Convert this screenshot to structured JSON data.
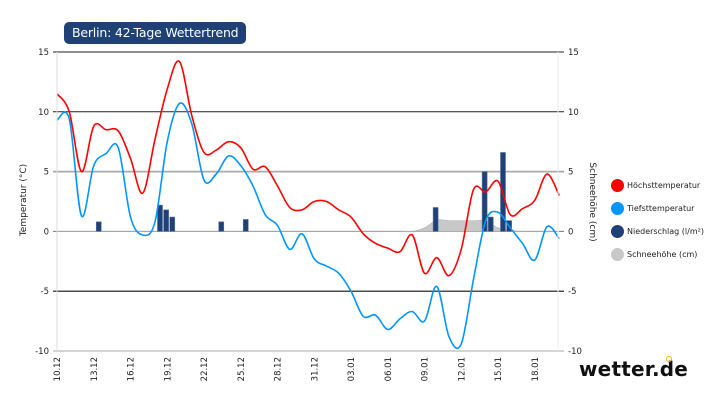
{
  "title": "Berlin: 42-Tage Wettertrend",
  "logo": "wetter.de",
  "legend": [
    {
      "label": "Höchsttemperatur",
      "color": "#ff0000"
    },
    {
      "label": "Tiefsttemperatur",
      "color": "#0096ff"
    },
    {
      "label": "Niederschlag (l/m²)",
      "color": "#1f4176"
    },
    {
      "label": "Schneehöhe (cm)",
      "color": "#c8c8c8"
    }
  ],
  "chart_data": {
    "type": "line",
    "title": "Berlin: 42-Tage Wettertrend",
    "ylabel": "Temperatur (°C)",
    "y2label": "Schneehöhe (cm)",
    "ylim": [
      -10,
      15
    ],
    "y2lim": [
      -10,
      15
    ],
    "yticks": [
      "15",
      "10",
      "5",
      "0",
      "-5",
      "-10"
    ],
    "grid": true,
    "legend_position": "right",
    "x": [
      "10.12",
      "11.12",
      "12.12",
      "13.12",
      "14.12",
      "15.12",
      "16.12",
      "17.12",
      "18.12",
      "19.12",
      "20.12",
      "21.12",
      "22.12",
      "23.12",
      "24.12",
      "25.12",
      "26.12",
      "27.12",
      "28.12",
      "29.12",
      "30.12",
      "31.12",
      "01.01",
      "02.01",
      "03.01",
      "04.01",
      "05.01",
      "06.01",
      "07.01",
      "08.01",
      "09.01",
      "10.01",
      "11.01",
      "12.01",
      "13.01",
      "14.01",
      "15.01",
      "16.01",
      "17.01",
      "18.01",
      "19.01",
      "20.01"
    ],
    "xtick_labels": [
      "10.12",
      "13.12",
      "16.12",
      "19.12",
      "22.12",
      "25.12",
      "28.12",
      "31.12",
      "03.01",
      "06.01",
      "09.01",
      "12.01",
      "15.01",
      "18.01"
    ],
    "series": [
      {
        "name": "Höchsttemperatur",
        "color": "#ff0000",
        "values": [
          11.5,
          10.0,
          5.0,
          8.8,
          8.5,
          8.4,
          6.1,
          3.2,
          7.7,
          11.9,
          14.2,
          9.7,
          6.6,
          6.8,
          7.5,
          7.0,
          5.2,
          5.4,
          3.8,
          2.0,
          1.8,
          2.5,
          2.5,
          1.8,
          1.2,
          -0.2,
          -1.0,
          -1.4,
          -1.7,
          -0.3,
          -3.5,
          -2.2,
          -3.7,
          -1.5,
          3.5,
          3.3,
          4.2,
          1.4,
          1.9,
          2.6,
          4.8,
          3.0
        ]
      },
      {
        "name": "Tiefsttemperatur",
        "color": "#0096ff",
        "values": [
          9.3,
          9.4,
          1.3,
          5.5,
          6.5,
          7.0,
          1.2,
          -0.3,
          0.8,
          7.5,
          10.7,
          9.0,
          4.3,
          4.8,
          6.3,
          5.5,
          3.8,
          1.4,
          0.5,
          -1.5,
          -0.2,
          -2.3,
          -2.9,
          -3.5,
          -5.0,
          -7.1,
          -7.0,
          -8.2,
          -7.3,
          -6.7,
          -7.5,
          -4.6,
          -8.8,
          -9.4,
          -4.0,
          0.9,
          1.6,
          0.3,
          -1.0,
          -2.4,
          0.4,
          -0.6
        ]
      },
      {
        "name": "Schneehöhe (cm)",
        "color": "#c8c8c8",
        "values": [
          0,
          0,
          0,
          0,
          0,
          0,
          0,
          0,
          0,
          0,
          0,
          0,
          0,
          0,
          0,
          0,
          0,
          0,
          0,
          0,
          0,
          0,
          0,
          0,
          0,
          0,
          0,
          0,
          0,
          0,
          0.3,
          0.95,
          0.9,
          0.9,
          0.9,
          0.9,
          0.3,
          0.1,
          0,
          0,
          0,
          0
        ]
      }
    ],
    "bars": {
      "name": "Niederschlag (l/m²)",
      "color": "#1f4176",
      "points": [
        {
          "date": "13.12",
          "value": 0.8
        },
        {
          "date": "18.12",
          "value": 2.2
        },
        {
          "date": "18.12 12:00",
          "value": 1.8
        },
        {
          "date": "19.12",
          "value": 1.2
        },
        {
          "date": "23.12",
          "value": 0.8
        },
        {
          "date": "25.12",
          "value": 1.0
        },
        {
          "date": "09.01 12:00",
          "value": 2.0
        },
        {
          "date": "13.01 12:00",
          "value": 5.0
        },
        {
          "date": "14.01",
          "value": 1.2
        },
        {
          "date": "15.01",
          "value": 6.6
        },
        {
          "date": "15.01 12:00",
          "value": 0.9
        }
      ]
    }
  }
}
